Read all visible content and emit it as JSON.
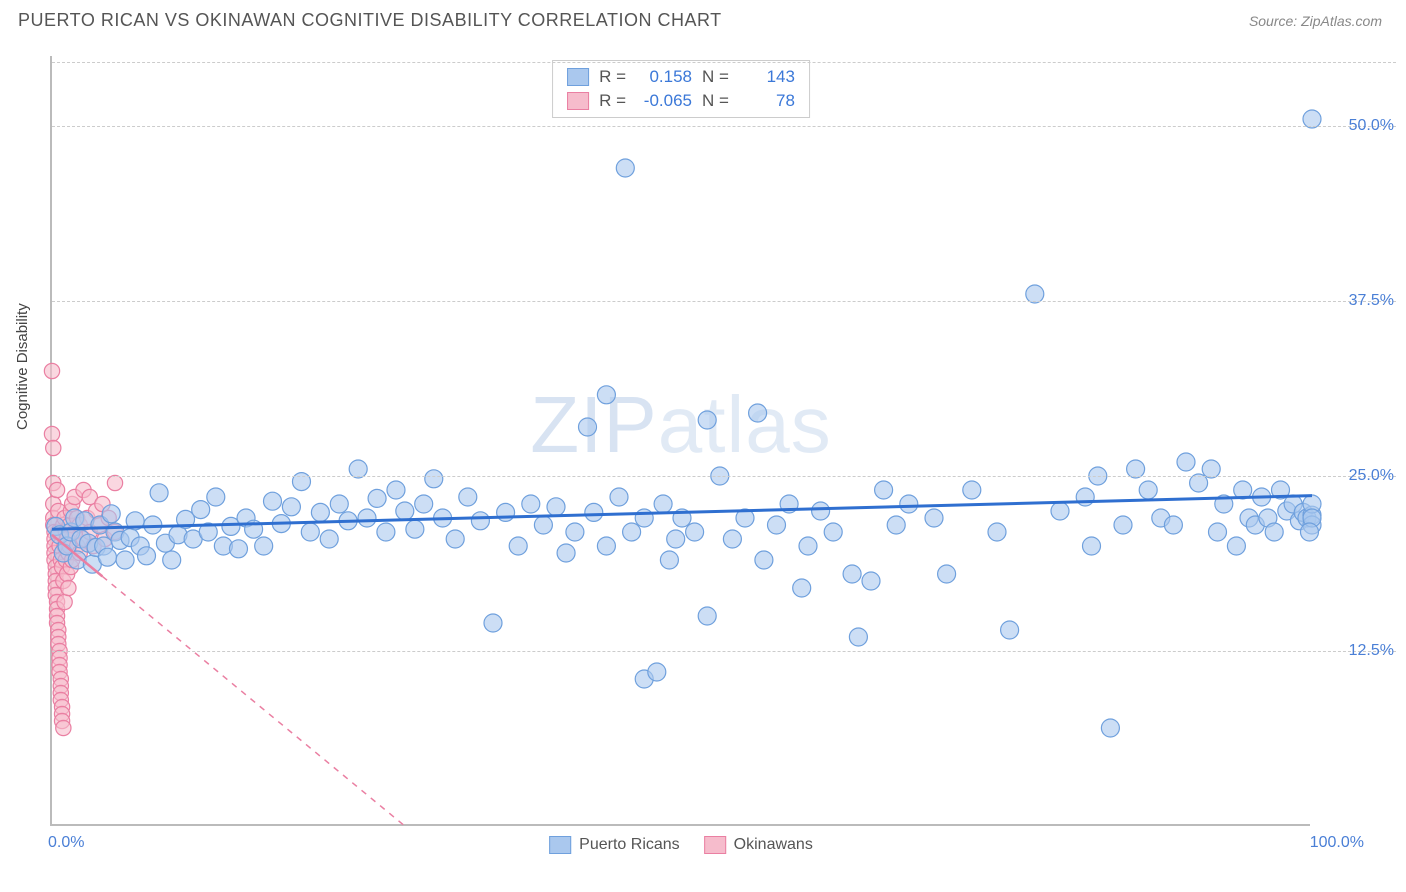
{
  "header": {
    "title": "PUERTO RICAN VS OKINAWAN COGNITIVE DISABILITY CORRELATION CHART",
    "source": "Source: ZipAtlas.com"
  },
  "ylabel": "Cognitive Disability",
  "watermark_bold": "ZIP",
  "watermark_thin": "atlas",
  "chart": {
    "type": "scatter",
    "xlim": [
      0,
      100
    ],
    "ylim": [
      0,
      55
    ],
    "xticks": [
      {
        "value": 0,
        "label": "0.0%"
      },
      {
        "value": 100,
        "label": "100.0%"
      }
    ],
    "yticks": [
      {
        "value": 12.5,
        "label": "12.5%"
      },
      {
        "value": 25.0,
        "label": "25.0%"
      },
      {
        "value": 37.5,
        "label": "37.5%"
      },
      {
        "value": 50.0,
        "label": "50.0%"
      }
    ],
    "grid_color": "#cccccc",
    "background_color": "#ffffff",
    "marker_radius": 9,
    "marker_stroke_width": 1.2,
    "trend_line_width": 3,
    "series": {
      "puerto_ricans": {
        "label": "Puerto Ricans",
        "fill": "#aac8ee",
        "stroke": "#6fa0dd",
        "fill_opacity": 0.6,
        "trend_color": "#2f6fd0",
        "trend_dash": "none",
        "R": "0.158",
        "N": "143",
        "trend": {
          "x1": 0,
          "y1": 21.2,
          "x2": 100,
          "y2": 23.6
        },
        "points": [
          [
            0.3,
            21.4
          ],
          [
            0.6,
            20.8
          ],
          [
            0.9,
            19.5
          ],
          [
            1.2,
            20.0
          ],
          [
            1.5,
            21.0
          ],
          [
            1.8,
            22.0
          ],
          [
            2.0,
            19.0
          ],
          [
            2.3,
            20.5
          ],
          [
            2.6,
            21.8
          ],
          [
            2.9,
            20.2
          ],
          [
            3.2,
            18.7
          ],
          [
            3.5,
            19.9
          ],
          [
            3.8,
            21.5
          ],
          [
            4.1,
            20.0
          ],
          [
            4.4,
            19.2
          ],
          [
            4.7,
            22.3
          ],
          [
            5.0,
            21.0
          ],
          [
            5.4,
            20.4
          ],
          [
            5.8,
            19.0
          ],
          [
            6.2,
            20.6
          ],
          [
            6.6,
            21.8
          ],
          [
            7.0,
            20.0
          ],
          [
            7.5,
            19.3
          ],
          [
            8.0,
            21.5
          ],
          [
            8.5,
            23.8
          ],
          [
            9.0,
            20.2
          ],
          [
            9.5,
            19.0
          ],
          [
            10.0,
            20.8
          ],
          [
            10.6,
            21.9
          ],
          [
            11.2,
            20.5
          ],
          [
            11.8,
            22.6
          ],
          [
            12.4,
            21.0
          ],
          [
            13.0,
            23.5
          ],
          [
            13.6,
            20.0
          ],
          [
            14.2,
            21.4
          ],
          [
            14.8,
            19.8
          ],
          [
            15.4,
            22.0
          ],
          [
            16.0,
            21.2
          ],
          [
            16.8,
            20.0
          ],
          [
            17.5,
            23.2
          ],
          [
            18.2,
            21.6
          ],
          [
            19.0,
            22.8
          ],
          [
            19.8,
            24.6
          ],
          [
            20.5,
            21.0
          ],
          [
            21.3,
            22.4
          ],
          [
            22.0,
            20.5
          ],
          [
            22.8,
            23.0
          ],
          [
            23.5,
            21.8
          ],
          [
            24.3,
            25.5
          ],
          [
            25.0,
            22.0
          ],
          [
            25.8,
            23.4
          ],
          [
            26.5,
            21.0
          ],
          [
            27.3,
            24.0
          ],
          [
            28.0,
            22.5
          ],
          [
            28.8,
            21.2
          ],
          [
            29.5,
            23.0
          ],
          [
            30.3,
            24.8
          ],
          [
            31.0,
            22.0
          ],
          [
            32.0,
            20.5
          ],
          [
            33.0,
            23.5
          ],
          [
            34.0,
            21.8
          ],
          [
            35.0,
            14.5
          ],
          [
            36.0,
            22.4
          ],
          [
            37.0,
            20.0
          ],
          [
            38.0,
            23.0
          ],
          [
            39.0,
            21.5
          ],
          [
            40.0,
            22.8
          ],
          [
            40.8,
            19.5
          ],
          [
            41.5,
            21.0
          ],
          [
            42.5,
            28.5
          ],
          [
            43.0,
            22.4
          ],
          [
            44.0,
            30.8
          ],
          [
            44.0,
            20.0
          ],
          [
            45.0,
            23.5
          ],
          [
            45.5,
            47.0
          ],
          [
            46.0,
            21.0
          ],
          [
            47.0,
            22.0
          ],
          [
            47.0,
            10.5
          ],
          [
            48.0,
            11.0
          ],
          [
            48.5,
            23.0
          ],
          [
            49.0,
            19.0
          ],
          [
            49.5,
            20.5
          ],
          [
            50.0,
            22.0
          ],
          [
            51.0,
            21.0
          ],
          [
            52.0,
            15.0
          ],
          [
            52.0,
            29.0
          ],
          [
            53.0,
            25.0
          ],
          [
            54.0,
            20.5
          ],
          [
            55.0,
            22.0
          ],
          [
            56.0,
            29.5
          ],
          [
            56.5,
            19.0
          ],
          [
            57.5,
            21.5
          ],
          [
            58.5,
            23.0
          ],
          [
            59.5,
            17.0
          ],
          [
            60.0,
            20.0
          ],
          [
            61.0,
            22.5
          ],
          [
            62.0,
            21.0
          ],
          [
            63.5,
            18.0
          ],
          [
            64.0,
            13.5
          ],
          [
            65.0,
            17.5
          ],
          [
            66.0,
            24.0
          ],
          [
            67.0,
            21.5
          ],
          [
            68.0,
            23.0
          ],
          [
            70.0,
            22.0
          ],
          [
            71.0,
            18.0
          ],
          [
            73.0,
            24.0
          ],
          [
            75.0,
            21.0
          ],
          [
            76.0,
            14.0
          ],
          [
            78.0,
            38.0
          ],
          [
            80.0,
            22.5
          ],
          [
            82.0,
            23.5
          ],
          [
            82.5,
            20.0
          ],
          [
            83.0,
            25.0
          ],
          [
            84.0,
            7.0
          ],
          [
            85.0,
            21.5
          ],
          [
            86.0,
            25.5
          ],
          [
            87.0,
            24.0
          ],
          [
            88.0,
            22.0
          ],
          [
            89.0,
            21.5
          ],
          [
            90.0,
            26.0
          ],
          [
            91.0,
            24.5
          ],
          [
            92.0,
            25.5
          ],
          [
            92.5,
            21.0
          ],
          [
            93.0,
            23.0
          ],
          [
            94.0,
            20.0
          ],
          [
            94.5,
            24.0
          ],
          [
            95.0,
            22.0
          ],
          [
            95.5,
            21.5
          ],
          [
            96.0,
            23.5
          ],
          [
            96.5,
            22.0
          ],
          [
            97.0,
            21.0
          ],
          [
            97.5,
            24.0
          ],
          [
            98.0,
            22.5
          ],
          [
            98.5,
            23.0
          ],
          [
            99.0,
            21.8
          ],
          [
            99.3,
            22.4
          ],
          [
            99.6,
            22.0
          ],
          [
            100.0,
            50.5
          ],
          [
            100.0,
            22.2
          ],
          [
            100.0,
            21.5
          ],
          [
            100.0,
            23.0
          ],
          [
            100.0,
            22.0
          ],
          [
            99.8,
            21.0
          ]
        ]
      },
      "okinawans": {
        "label": "Okinawans",
        "fill": "#f6bccc",
        "stroke": "#ea7fa2",
        "fill_opacity": 0.6,
        "trend_color": "#ea7fa2",
        "trend_dash": "6 6",
        "R": "-0.065",
        "N": "78",
        "trend": {
          "x1": 0,
          "y1": 20.8,
          "x2": 28,
          "y2": 0
        },
        "trend_solid_x2": 4,
        "points": [
          [
            0.0,
            32.5
          ],
          [
            0.0,
            28.0
          ],
          [
            0.1,
            27.0
          ],
          [
            0.1,
            24.5
          ],
          [
            0.1,
            23.0
          ],
          [
            0.1,
            22.0
          ],
          [
            0.1,
            21.5
          ],
          [
            0.2,
            21.0
          ],
          [
            0.2,
            20.5
          ],
          [
            0.2,
            20.0
          ],
          [
            0.2,
            19.5
          ],
          [
            0.2,
            19.0
          ],
          [
            0.3,
            18.5
          ],
          [
            0.3,
            18.0
          ],
          [
            0.3,
            17.5
          ],
          [
            0.3,
            17.0
          ],
          [
            0.3,
            16.5
          ],
          [
            0.4,
            16.0
          ],
          [
            0.4,
            15.5
          ],
          [
            0.4,
            15.0
          ],
          [
            0.4,
            24.0
          ],
          [
            0.4,
            14.5
          ],
          [
            0.5,
            14.0
          ],
          [
            0.5,
            22.5
          ],
          [
            0.5,
            13.5
          ],
          [
            0.5,
            13.0
          ],
          [
            0.5,
            21.0
          ],
          [
            0.6,
            12.5
          ],
          [
            0.6,
            12.0
          ],
          [
            0.6,
            20.0
          ],
          [
            0.6,
            11.5
          ],
          [
            0.6,
            11.0
          ],
          [
            0.7,
            10.5
          ],
          [
            0.7,
            10.0
          ],
          [
            0.7,
            19.0
          ],
          [
            0.7,
            9.5
          ],
          [
            0.7,
            9.0
          ],
          [
            0.8,
            8.5
          ],
          [
            0.8,
            18.5
          ],
          [
            0.8,
            8.0
          ],
          [
            0.8,
            7.5
          ],
          [
            0.9,
            7.0
          ],
          [
            0.9,
            17.5
          ],
          [
            0.9,
            21.5
          ],
          [
            1.0,
            20.0
          ],
          [
            1.0,
            16.0
          ],
          [
            1.0,
            22.0
          ],
          [
            1.1,
            19.0
          ],
          [
            1.1,
            21.0
          ],
          [
            1.2,
            18.0
          ],
          [
            1.2,
            20.5
          ],
          [
            1.3,
            19.5
          ],
          [
            1.3,
            17.0
          ],
          [
            1.4,
            21.5
          ],
          [
            1.4,
            20.0
          ],
          [
            1.5,
            22.5
          ],
          [
            1.5,
            18.5
          ],
          [
            1.6,
            23.0
          ],
          [
            1.6,
            19.0
          ],
          [
            1.8,
            21.0
          ],
          [
            1.8,
            23.5
          ],
          [
            2.0,
            20.0
          ],
          [
            2.0,
            22.0
          ],
          [
            2.2,
            21.5
          ],
          [
            2.2,
            19.5
          ],
          [
            2.5,
            24.0
          ],
          [
            2.5,
            20.5
          ],
          [
            2.8,
            22.0
          ],
          [
            3.0,
            21.0
          ],
          [
            3.0,
            23.5
          ],
          [
            3.3,
            20.0
          ],
          [
            3.5,
            22.5
          ],
          [
            3.8,
            21.5
          ],
          [
            4.0,
            23.0
          ],
          [
            4.2,
            20.5
          ],
          [
            4.5,
            22.0
          ],
          [
            5.0,
            24.5
          ],
          [
            5.0,
            21.0
          ]
        ]
      }
    }
  },
  "legend_top": {
    "R_label": "R =",
    "N_label": "N ="
  },
  "colors": {
    "axis_text": "#4a7fd6",
    "title_text": "#555555"
  }
}
